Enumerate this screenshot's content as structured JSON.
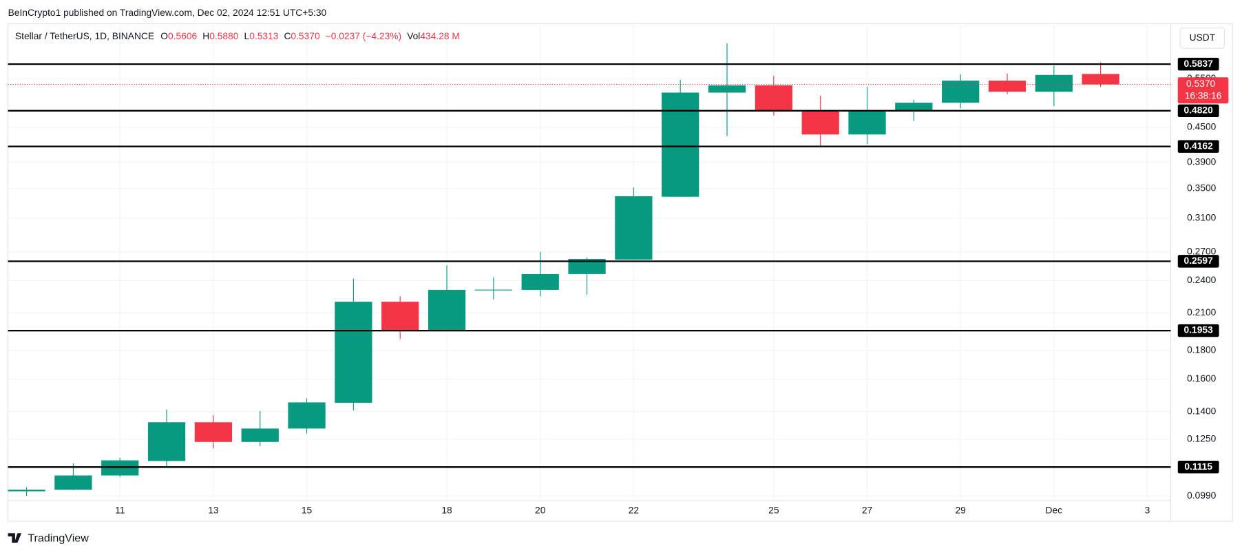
{
  "publisher": "BeInCrypto1 published on TradingView.com, Dec 02, 2024 12:51 UTC+5:30",
  "branding": "TradingView",
  "chart_data": {
    "type": "candlestick",
    "symbol": "Stellar / TetherUS, 1D, BINANCE",
    "legend_items": [
      {
        "key": "O",
        "text": "0.5606"
      },
      {
        "key": "H",
        "text": "0.5880"
      },
      {
        "key": "L",
        "text": "0.5313"
      },
      {
        "key": "C",
        "text": "0.5370"
      },
      {
        "text": "−0.0237 (−4.23%)"
      },
      {
        "key": "Vol",
        "text": "434.28 M"
      }
    ],
    "currency": "USDT",
    "categories": [
      null,
      null,
      "11",
      null,
      "13",
      null,
      "15",
      null,
      null,
      "18",
      null,
      "20",
      null,
      "22",
      null,
      null,
      "25",
      null,
      "27",
      null,
      "29",
      null,
      "Dec",
      null,
      "3"
    ],
    "open": [
      0.1009,
      0.1016,
      0.1077,
      0.1143,
      0.134,
      0.1236,
      0.1306,
      0.1452,
      0.2199,
      0.1955,
      0.2309,
      0.2309,
      0.2464,
      0.2615,
      0.3385,
      0.5193,
      0.5349,
      0.4806,
      0.4372,
      0.4806,
      0.4981,
      0.5454,
      0.5211,
      0.5606,
      null
    ],
    "high": [
      0.1026,
      0.1132,
      0.1158,
      0.1412,
      0.138,
      0.1404,
      0.1478,
      0.2417,
      0.2249,
      0.2554,
      0.2432,
      0.27,
      0.2638,
      0.3515,
      0.5473,
      0.6356,
      0.5565,
      0.5128,
      0.5317,
      0.5046,
      0.5598,
      0.5617,
      0.5801,
      0.588,
      null
    ],
    "low": [
      0.099,
      0.1014,
      0.107,
      0.1113,
      0.1204,
      0.1214,
      0.128,
      0.1407,
      0.1887,
      0.1955,
      0.222,
      0.2247,
      0.2264,
      0.2615,
      0.3385,
      0.4343,
      0.4727,
      0.4162,
      0.4205,
      0.462,
      0.4869,
      0.516,
      0.4912,
      0.5313,
      null
    ],
    "close": [
      0.1016,
      0.1077,
      0.1146,
      0.134,
      0.1236,
      0.1306,
      0.1454,
      0.2199,
      0.1955,
      0.2309,
      0.2311,
      0.2464,
      0.2622,
      0.3392,
      0.5193,
      0.5349,
      0.4806,
      0.4372,
      0.4806,
      0.4981,
      0.5454,
      0.5211,
      0.5584,
      0.537,
      null
    ],
    "up_color": "#089981",
    "down_color": "#f23645",
    "log_scale": true,
    "grid": true,
    "ylim": [
      0.0971,
      0.689
    ],
    "yticks": [
      {
        "value": 0.099,
        "label": "0.0990"
      },
      {
        "value": 0.125,
        "label": "0.1250"
      },
      {
        "value": 0.14,
        "label": "0.1400"
      },
      {
        "value": 0.16,
        "label": "0.1600"
      },
      {
        "value": 0.18,
        "label": "0.1800"
      },
      {
        "value": 0.21,
        "label": "0.2100"
      },
      {
        "value": 0.24,
        "label": "0.2400"
      },
      {
        "value": 0.27,
        "label": "0.2700"
      },
      {
        "value": 0.31,
        "label": "0.3100"
      },
      {
        "value": 0.35,
        "label": "0.3500"
      },
      {
        "value": 0.39,
        "label": "0.3900"
      },
      {
        "value": 0.45,
        "label": "0.4500"
      },
      {
        "value": 0.55,
        "label": "0.5500"
      }
    ],
    "levels": [
      {
        "value": 0.5837,
        "label": "0.5837"
      },
      {
        "value": 0.482,
        "label": "0.4820"
      },
      {
        "value": 0.4162,
        "label": "0.4162"
      },
      {
        "value": 0.2597,
        "label": "0.2597"
      },
      {
        "value": 0.1953,
        "label": "0.1953"
      },
      {
        "value": 0.1115,
        "label": "0.1115"
      }
    ],
    "last_price": {
      "value": 0.537,
      "label": "0.5370",
      "countdown": "16:38:16"
    }
  }
}
